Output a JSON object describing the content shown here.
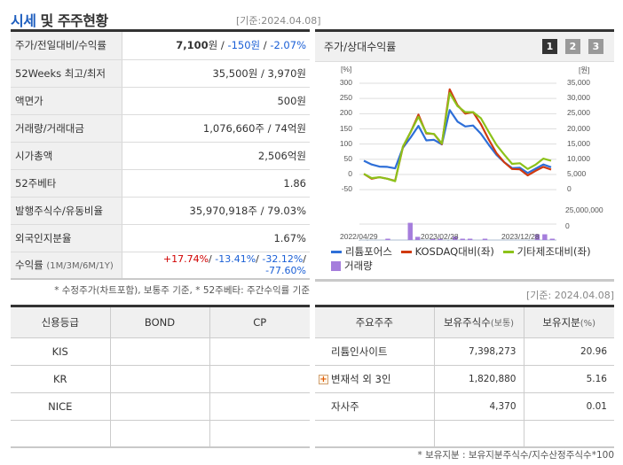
{
  "header": {
    "title_accent": "시세",
    "title_rest": " 및 주주현황",
    "as_of": "[기준:2024.04.08]"
  },
  "price_table": {
    "rows": [
      {
        "label": "주가/전일대비/수익률",
        "price": "7,100",
        "price_unit": "원",
        "sep1": " / ",
        "change": "-150원",
        "sep2": " / ",
        "change_pct": "-2.07%"
      },
      {
        "label": "52Weeks 최고/최저",
        "value": "35,500원 / 3,970원"
      },
      {
        "label": "액면가",
        "value": "500원"
      },
      {
        "label": "거래량/거래대금",
        "value": "1,076,660주 / 74억원"
      },
      {
        "label": "시가총액",
        "value": "2,506억원"
      },
      {
        "label": "52주베타",
        "value": "1.86"
      },
      {
        "label": "발행주식수/유동비율",
        "value": "35,970,918주 / 79.03%"
      },
      {
        "label": "외국인지분율",
        "value": "1.67%"
      },
      {
        "label": "수익률",
        "label_unit": "(1M/3M/6M/1Y)",
        "r1m": "+17.74%",
        "r3m": "-13.41%",
        "r6m": "-32.12%",
        "r1y": "-77.60%"
      }
    ],
    "note": "* 수정주가(차트포함), 보통주 기준, * 52주베타: 주간수익률 기준"
  },
  "chart_panel": {
    "title": "주가/상대수익률",
    "pages": [
      "1",
      "2",
      "3"
    ],
    "active_page": "1",
    "as_of": "[기준: 2024.04.08]",
    "legend": [
      {
        "label": "리튬포어스",
        "color": "#2e6fd8"
      },
      {
        "label": "KOSDAQ대비(좌)",
        "color": "#d03a10"
      },
      {
        "label": "기타제조대비(좌)",
        "color": "#8cc21a"
      },
      {
        "label": "거래량",
        "color": "#a57ddc"
      }
    ]
  },
  "chart_data": {
    "type": "line",
    "title": "주가/상대수익률",
    "left_axis": {
      "label": "[%]",
      "ticks": [
        "300",
        "250",
        "200",
        "150",
        "100",
        "50",
        "0",
        "-50"
      ],
      "range": [
        -50,
        300
      ]
    },
    "right_axis": {
      "label": "[원]",
      "ticks": [
        "35,000",
        "30,000",
        "25,000",
        "20,000",
        "15,000",
        "10,000",
        "5,000",
        "0"
      ],
      "range": [
        0,
        35000
      ]
    },
    "volume_axis": {
      "ticks": [
        "25,000,000",
        "0"
      ]
    },
    "x_ticks": [
      "2022/04/29",
      "2023/02/28",
      "2023/12/28"
    ],
    "grid": true,
    "series": [
      {
        "name": "리튬포어스",
        "axis": "right",
        "color": "#2e6fd8",
        "values": [
          9500,
          8300,
          7600,
          7500,
          7000,
          13800,
          17200,
          21000,
          16200,
          16400,
          14900,
          26200,
          22400,
          20800,
          21100,
          18400,
          14800,
          11400,
          9000,
          7100,
          7200,
          5500,
          6900,
          8300,
          7400
        ]
      },
      {
        "name": "KOSDAQ대비(좌)",
        "axis": "left",
        "color": "#d03a10",
        "values": [
          2,
          -14,
          -9,
          -14,
          -21,
          90,
          140,
          197,
          135,
          133,
          100,
          280,
          228,
          200,
          205,
          165,
          115,
          70,
          40,
          18,
          17,
          -3,
          12,
          25,
          16
        ]
      },
      {
        "name": "기타제조대비(좌)",
        "axis": "left",
        "color": "#8cc21a",
        "values": [
          2,
          -12,
          -9,
          -14,
          -22,
          92,
          140,
          190,
          137,
          133,
          102,
          268,
          225,
          205,
          205,
          185,
          140,
          97,
          65,
          35,
          37,
          18,
          32,
          52,
          45
        ]
      },
      {
        "name": "거래량",
        "axis": "volume",
        "color": "#a57ddc",
        "type": "bar",
        "values": [
          0,
          0,
          0,
          1000000,
          0,
          0,
          27000000,
          5000000,
          0,
          700000,
          700000,
          0,
          5500000,
          700000,
          700000,
          0,
          700000,
          0,
          0,
          0,
          0,
          0,
          0,
          9000000,
          9000000,
          1000000
        ]
      }
    ]
  },
  "credit_table": {
    "headers": [
      "신용등급",
      "BOND",
      "CP"
    ],
    "rows": [
      [
        "KIS",
        "",
        ""
      ],
      [
        "KR",
        "",
        ""
      ],
      [
        "NICE",
        "",
        ""
      ],
      [
        "",
        "",
        ""
      ]
    ]
  },
  "holder_table": {
    "headers": [
      "주요주주",
      "보유주식수",
      "(보통)",
      "보유지분",
      "(%)"
    ],
    "rows": [
      {
        "name": "리튬인사이트",
        "shares": "7,398,273",
        "pct": "20.96",
        "expandable": false
      },
      {
        "name": "변재석 외 3인",
        "shares": "1,820,880",
        "pct": "5.16",
        "expandable": true
      },
      {
        "name": "자사주",
        "shares": "4,370",
        "pct": "0.01",
        "expandable": false
      },
      {
        "name": "",
        "shares": "",
        "pct": "",
        "expandable": false
      }
    ],
    "expand_symbol": "+",
    "note": "* 보유지분 : 보유지분주식수/지수산정주식수*100"
  }
}
